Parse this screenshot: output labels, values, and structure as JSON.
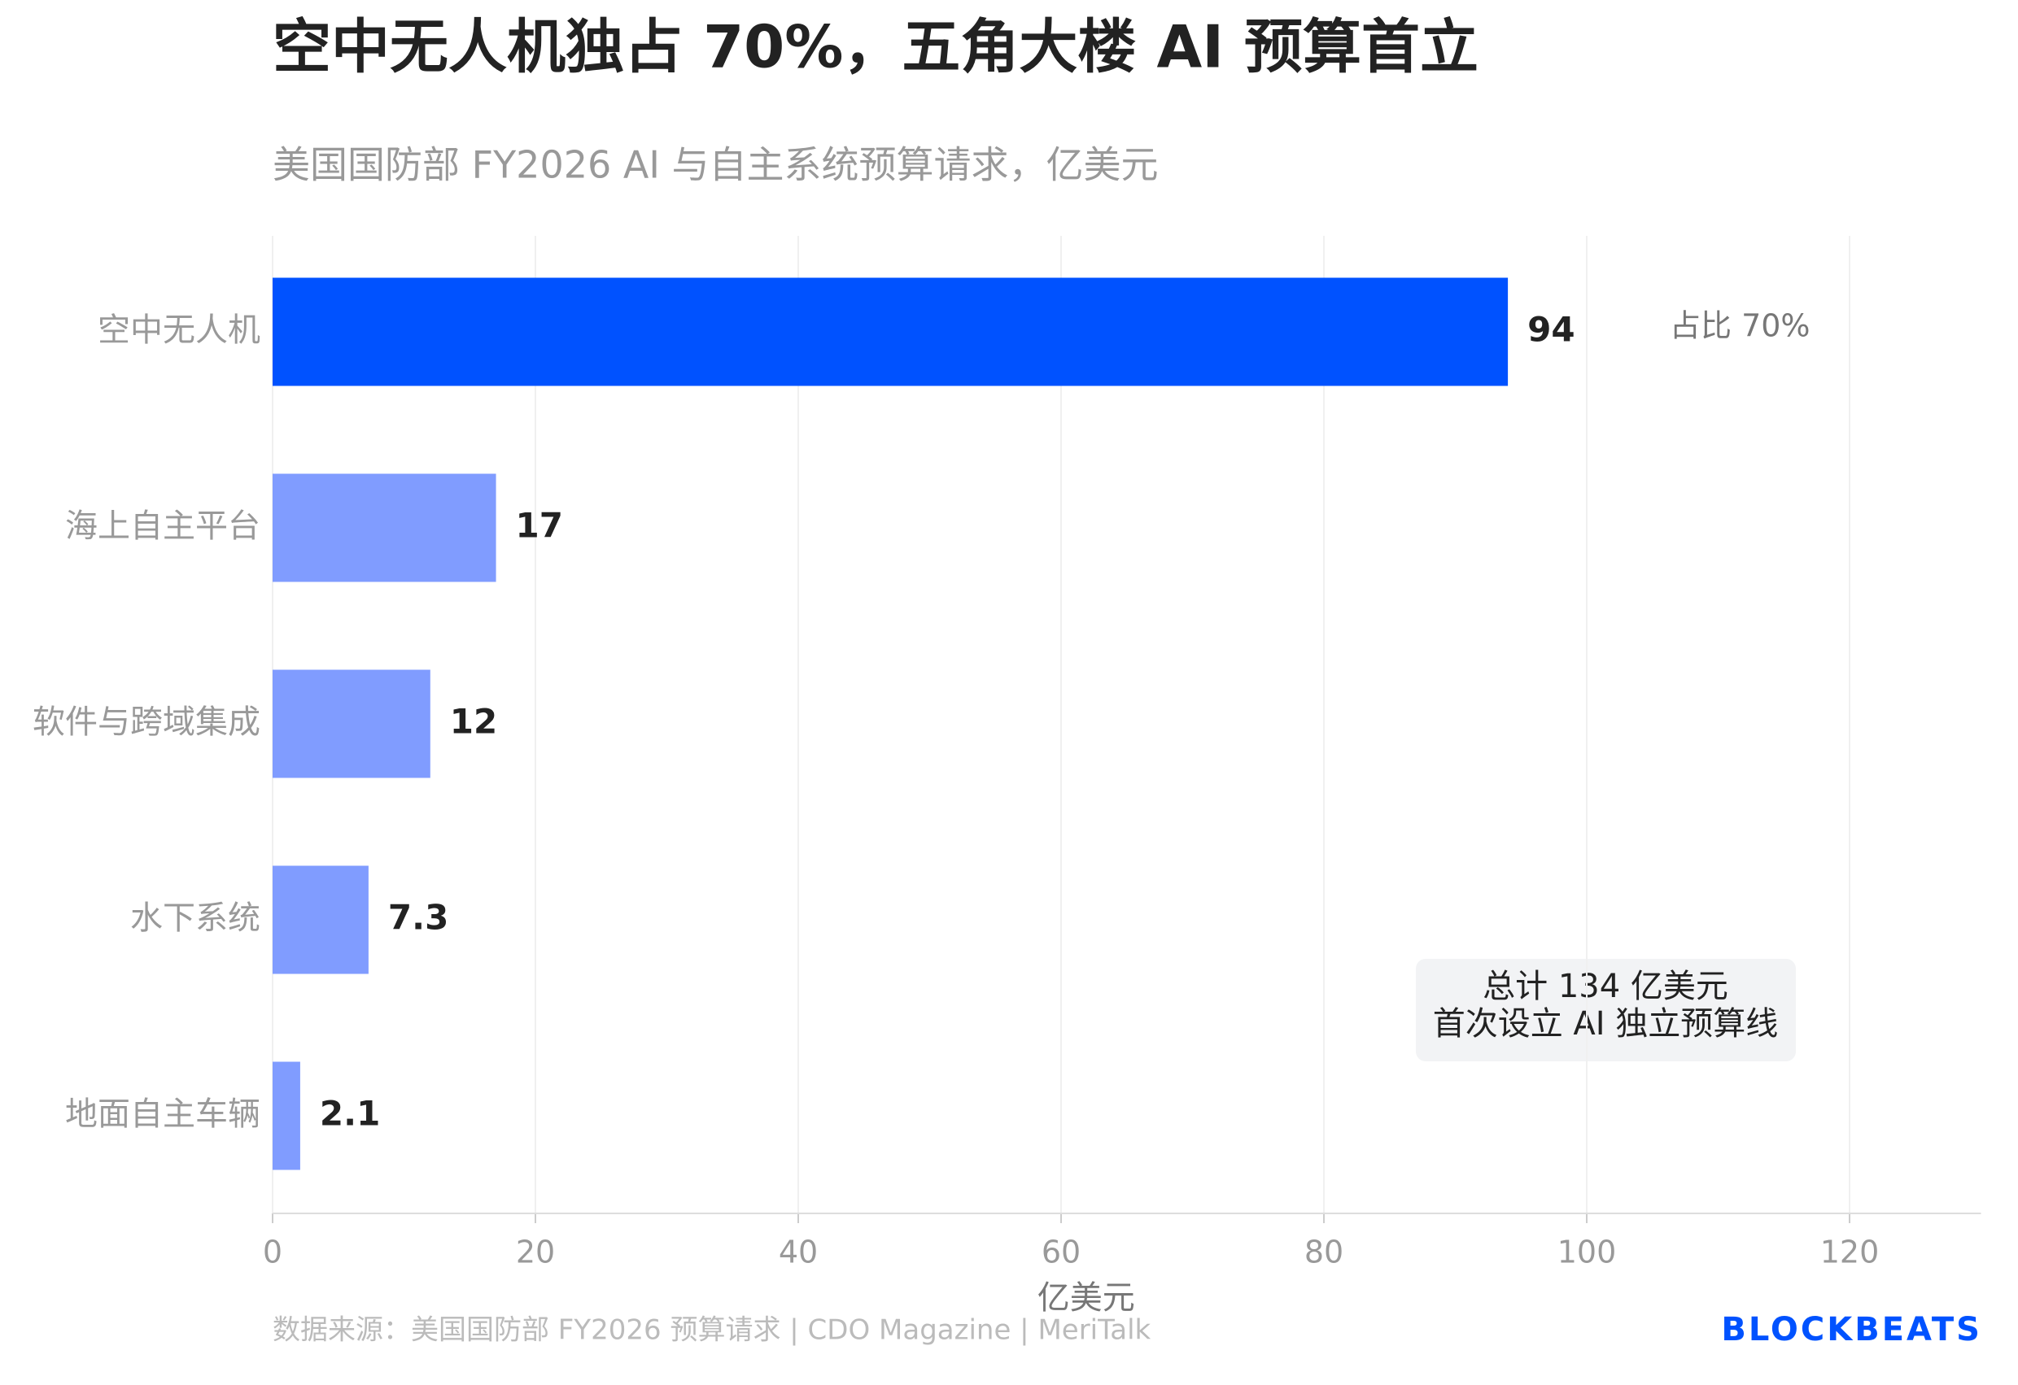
{
  "chart_data": {
    "type": "hbar",
    "title": "空中无人机独占 70%，五角大楼 AI 预算首立",
    "subtitle": "美国国防部 FY2026 AI 与自主系统预算请求，亿美元",
    "categories": [
      "空中无人机",
      "海上自主平台",
      "软件与跨域集成",
      "水下系统",
      "地面自主车辆"
    ],
    "values": [
      94,
      17,
      12,
      7.3,
      2.1
    ],
    "colors": [
      "#0052ff",
      "#809cff",
      "#809cff",
      "#809cff",
      "#809cff"
    ],
    "xlabel": "亿美元",
    "xlim": [
      0,
      130
    ],
    "xticks": [
      0,
      20,
      40,
      60,
      80,
      100,
      120
    ],
    "grid": true,
    "bar_annotation": "占比 70%",
    "note": [
      "总计 134 亿美元",
      "首次设立 AI 独立预算线"
    ],
    "source": "数据来源：美国国防部 FY2026 预算请求 | CDO Magazine | MeriTalk",
    "brand": "BLOCKBEATS"
  }
}
